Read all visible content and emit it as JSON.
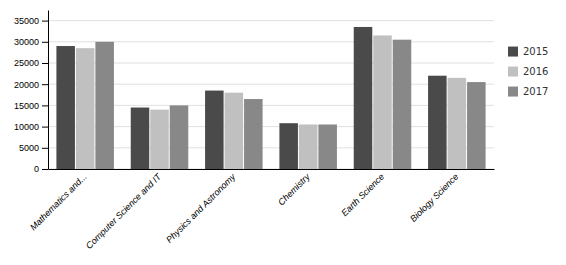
{
  "chart_data": {
    "type": "bar",
    "categories": [
      "Mathematics and...",
      "Computer Science and IT",
      "Physics and Astronomy",
      "Chemistry",
      "Earth Science",
      "Biology Science"
    ],
    "series": [
      {
        "name": "2015",
        "color": "#4a4a4a",
        "values": [
          29000,
          14500,
          18500,
          10800,
          33500,
          22000
        ]
      },
      {
        "name": "2016",
        "color": "#c0c0c0",
        "values": [
          28500,
          14000,
          18000,
          10500,
          31500,
          21500
        ]
      },
      {
        "name": "2017",
        "color": "#888888",
        "values": [
          30000,
          15000,
          16500,
          10500,
          30500,
          20500
        ]
      }
    ],
    "ylim": [
      0,
      37500
    ],
    "yticks": [
      0,
      5000,
      10000,
      15000,
      20000,
      25000,
      30000,
      35000
    ],
    "grid": true,
    "legend": "right"
  }
}
